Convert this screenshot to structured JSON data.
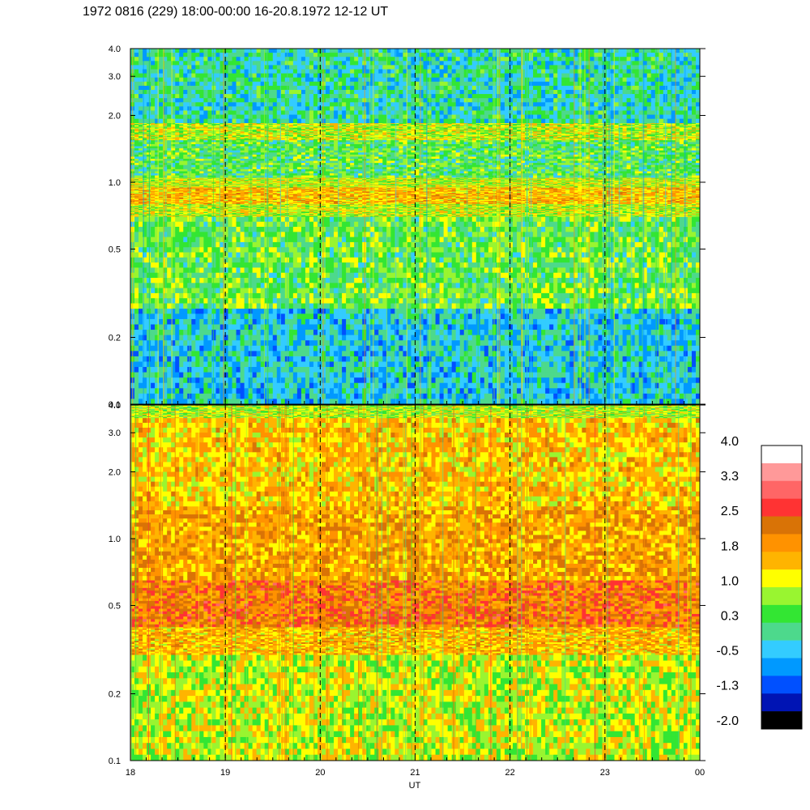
{
  "chart_data": {
    "type": "heatmap",
    "title": "1972 0816 (229) 18:00-00:00 16-20.8.1972  12-12 UT",
    "xlabel": "UT",
    "x_ticks": [
      "18",
      "19",
      "20",
      "21",
      "22",
      "23",
      "00"
    ],
    "x_range": [
      18,
      24
    ],
    "y_scale": "log",
    "y_range": [
      0.1,
      4.0
    ],
    "y_ticks": [
      "0.1",
      "0.2",
      "0.5",
      "1.0",
      "2.0",
      "3.0",
      "4.0"
    ],
    "y_tick_values": [
      0.1,
      0.2,
      0.5,
      1.0,
      2.0,
      3.0,
      4.0
    ],
    "gridlines": "dashed vertical at each hour",
    "colorbar": {
      "labels": [
        "4.0",
        "3.3",
        "2.5",
        "1.8",
        "1.0",
        "0.3",
        "-0.5",
        "-1.3",
        "-2.0"
      ],
      "colors_top_to_bottom": [
        "#ffffff",
        "#ff9999",
        "#ff6666",
        "#ff3333",
        "#d97306",
        "#ff9200",
        "#ffb400",
        "#ffff00",
        "#99f530",
        "#33e633",
        "#4dd98c",
        "#33ccff",
        "#0099ff",
        "#0050ff",
        "#0014b4",
        "#000000"
      ]
    },
    "panels": [
      {
        "name": "upper",
        "background_level": 0.6,
        "bands": [
          {
            "y_from": 0.1,
            "y_to": 0.27,
            "level": -0.3
          },
          {
            "y_from": 0.27,
            "y_to": 0.7,
            "level": 0.5
          },
          {
            "y_from": 0.7,
            "y_to": 0.8,
            "level": 1.0
          },
          {
            "y_from": 0.8,
            "y_to": 0.95,
            "level": 1.6
          },
          {
            "y_from": 0.95,
            "y_to": 1.05,
            "level": 1.0
          },
          {
            "y_from": 1.05,
            "y_to": 1.55,
            "level": 0.4
          },
          {
            "y_from": 1.55,
            "y_to": 1.85,
            "level": 1.0
          },
          {
            "y_from": 1.85,
            "y_to": 4.0,
            "level": 0.0
          }
        ]
      },
      {
        "name": "lower",
        "background_level": 1.4,
        "bands": [
          {
            "y_from": 0.1,
            "y_to": 0.3,
            "level": 1.0
          },
          {
            "y_from": 0.3,
            "y_to": 0.4,
            "level": 1.6
          },
          {
            "y_from": 0.4,
            "y_to": 0.65,
            "level": 2.2
          },
          {
            "y_from": 0.65,
            "y_to": 1.4,
            "level": 1.8
          },
          {
            "y_from": 1.4,
            "y_to": 3.5,
            "level": 1.5
          },
          {
            "y_from": 3.5,
            "y_to": 4.0,
            "level": 0.9
          }
        ]
      }
    ]
  }
}
